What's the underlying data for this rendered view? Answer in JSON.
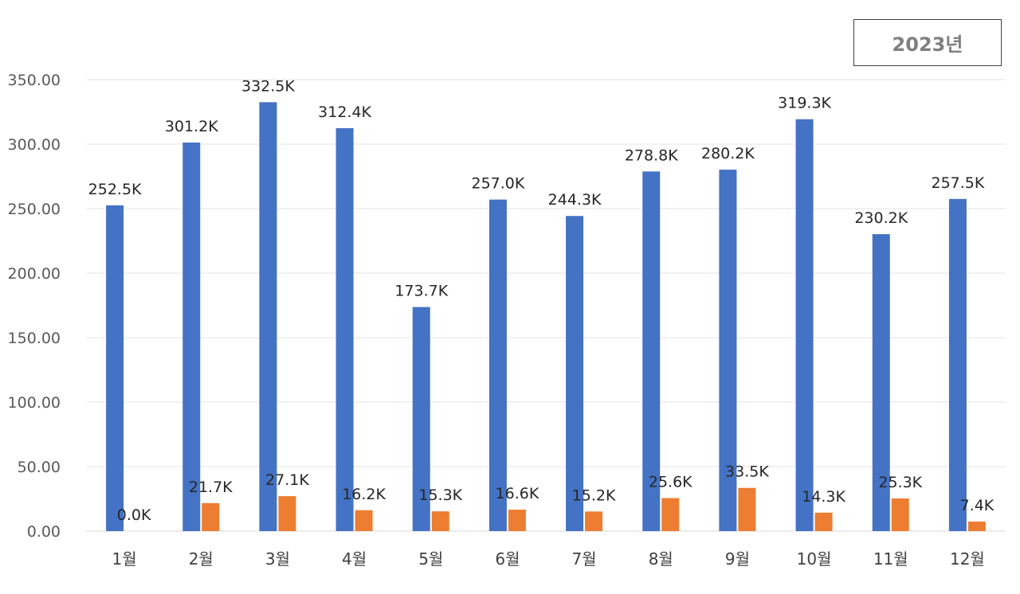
{
  "chart_data": {
    "type": "bar",
    "title": "2023년",
    "categories": [
      "1월",
      "2월",
      "3월",
      "4월",
      "5월",
      "6월",
      "7월",
      "8월",
      "9월",
      "10월",
      "11월",
      "12월"
    ],
    "series": [
      {
        "values": [
          252.5,
          301.2,
          332.5,
          312.4,
          173.7,
          257.0,
          244.3,
          278.8,
          280.2,
          319.3,
          230.2,
          257.5
        ],
        "labels": [
          "252.5K",
          "301.2K",
          "332.5K",
          "312.4K",
          "173.7K",
          "257.0K",
          "244.3K",
          "278.8K",
          "280.2K",
          "319.3K",
          "230.2K",
          "257.5K"
        ],
        "color": "#4472C4"
      },
      {
        "values": [
          0.0,
          21.7,
          27.1,
          16.2,
          15.3,
          16.6,
          15.2,
          25.6,
          33.5,
          14.3,
          25.3,
          7.4
        ],
        "labels": [
          "0.0K",
          "21.7K",
          "27.1K",
          "16.2K",
          "15.3K",
          "16.6K",
          "15.2K",
          "25.6K",
          "33.5K",
          "14.3K",
          "25.3K",
          "7.4K"
        ],
        "color": "#ED7D31"
      }
    ],
    "ylim": [
      0,
      350
    ],
    "yticks": [
      "0.00",
      "50.00",
      "100.00",
      "150.00",
      "200.00",
      "250.00",
      "300.00",
      "350.00"
    ],
    "grid": true,
    "legend": "none"
  }
}
